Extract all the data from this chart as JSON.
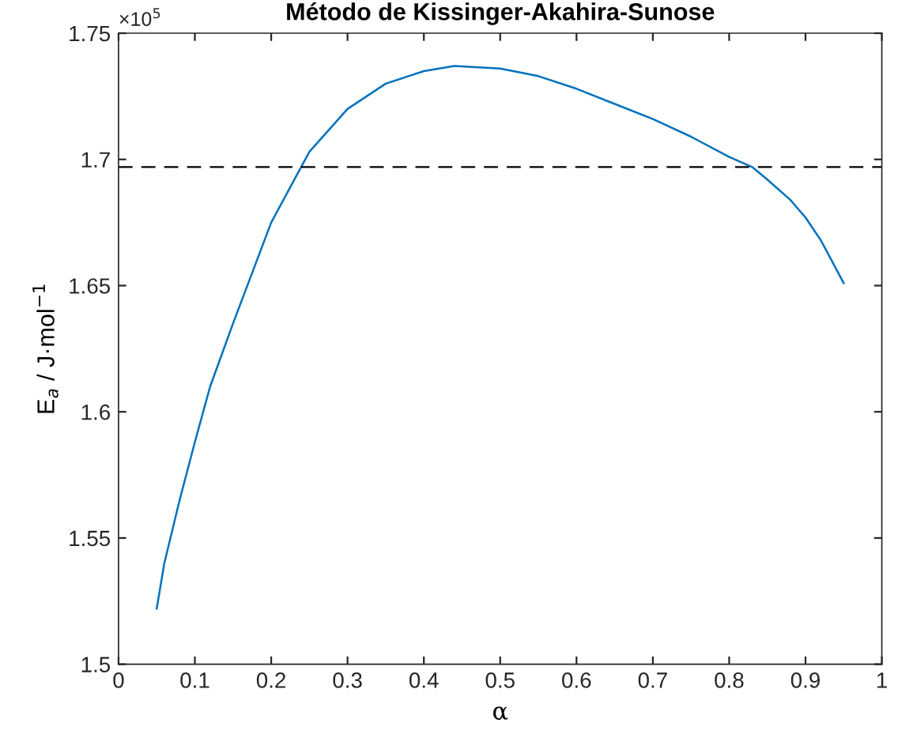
{
  "chart_data": {
    "type": "line",
    "title": "Método de Kissinger-Akahira-Sunose",
    "xlabel": "α",
    "ylabel": "E$_{a}$ / J·mol$^{−1}$",
    "annotations": [
      "×10$^{5}$"
    ],
    "x": [
      0.05,
      0.06,
      0.08,
      0.1,
      0.12,
      0.15,
      0.2,
      0.25,
      0.3,
      0.35,
      0.4,
      0.44,
      0.5,
      0.55,
      0.6,
      0.65,
      0.7,
      0.75,
      0.8,
      0.83,
      0.85,
      0.88,
      0.9,
      0.92,
      0.95
    ],
    "series": [
      {
        "color": "#0072bd",
        "values": [
          1.522,
          1.54,
          1.565,
          1.588,
          1.61,
          1.635,
          1.675,
          1.703,
          1.72,
          1.73,
          1.735,
          1.737,
          1.736,
          1.733,
          1.728,
          1.722,
          1.716,
          1.709,
          1.701,
          1.697,
          1.692,
          1.684,
          1.677,
          1.668,
          1.651
        ]
      }
    ],
    "ref_lines": [
      {
        "axis": "y",
        "value": 1.697,
        "color": "#000000",
        "line_style": "dashed"
      }
    ],
    "xlim": [
      0,
      1
    ],
    "ylim": [
      1.5,
      1.75
    ],
    "xticks": [
      0,
      0.1,
      0.2,
      0.3,
      0.4,
      0.5,
      0.6,
      0.7,
      0.8,
      0.9,
      1
    ],
    "yticks": [
      1.5,
      1.55,
      1.6,
      1.65,
      1.7,
      1.75
    ],
    "grid": false,
    "legend": false,
    "line_style": "solid",
    "marker": "none"
  }
}
